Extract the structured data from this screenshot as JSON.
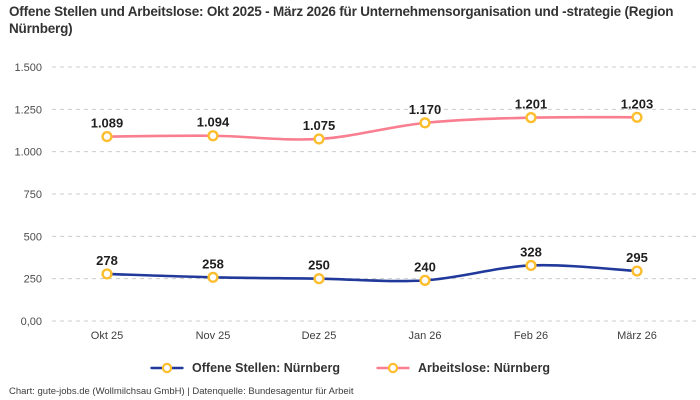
{
  "page": {
    "title": "Offene Stellen und Arbeitslose: Okt 2025 - März 2026 für Unternehmensorganisation und -strategie (Region Nürnberg)",
    "footer": "Chart: gute-jobs.de (Wollmilchsau GmbH) | Datenquelle: Bundesagentur für Arbeit"
  },
  "colors": {
    "background": "#ffffff",
    "title_text": "#333333",
    "grid": "#cccccc",
    "axis_text": "#4c4c4c",
    "data_label_text": "#1f1f1f",
    "legend_text": "#333333",
    "footer_text": "#3c3c3c"
  },
  "chart_data": {
    "type": "line",
    "title": "Offene Stellen und Arbeitslose: Okt 2025 - März 2026 für Unternehmensorganisation und -strategie (Region Nürnberg)",
    "categories": [
      "Okt 25",
      "Nov 25",
      "Dez 25",
      "Jan 26",
      "Feb 26",
      "März 26"
    ],
    "series": [
      {
        "name": "Offene Stellen: Nürnberg",
        "color": "#20399a",
        "values": [
          278,
          258,
          250,
          240,
          328,
          295
        ],
        "point_labels": [
          "278",
          "258",
          "250",
          "240",
          "328",
          "295"
        ]
      },
      {
        "name": "Arbeitslose: Nürnberg",
        "color": "#f87e90",
        "values": [
          1089,
          1094,
          1075,
          1170,
          1201,
          1203
        ],
        "point_labels": [
          "1.089",
          "1.094",
          "1.075",
          "1.170",
          "1.201",
          "1.203"
        ]
      }
    ],
    "ylim": [
      0,
      1500
    ],
    "yticks": [
      {
        "value": 0,
        "label": "0,00"
      },
      {
        "value": 250,
        "label": "250"
      },
      {
        "value": 500,
        "label": "500"
      },
      {
        "value": 750,
        "label": "750"
      },
      {
        "value": 1000,
        "label": "1.000"
      },
      {
        "value": 1250,
        "label": "1.250"
      },
      {
        "value": 1500,
        "label": "1.500"
      }
    ],
    "xlabel": "",
    "ylabel": "",
    "grid": "horizontal-dashed",
    "legend_position": "bottom",
    "marker": {
      "fill": "#ffffff",
      "stroke": "#fcbe2e"
    }
  }
}
